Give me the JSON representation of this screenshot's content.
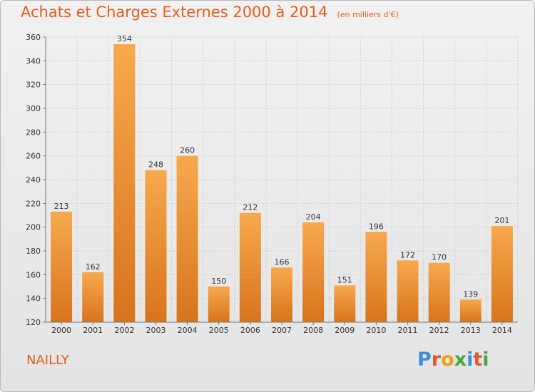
{
  "title": "Achats et Charges Externes 2000 à 2014",
  "unit_note": "(en milliers d'€)",
  "commune": "NAILLY",
  "logo_text": "Proxiti",
  "colors": {
    "title": "#e85a1a",
    "bar_light": "#f7a94e",
    "bar_dark": "#d8741b",
    "grid": "#cfcfcf",
    "axis_text": "#333333",
    "logo": [
      "#3a8ee0",
      "#e05a2a",
      "#e8a21a",
      "#4aa83a",
      "#3a8ee0",
      "#e05a2a",
      "#4aa83a"
    ]
  },
  "chart_data": {
    "type": "bar",
    "categories": [
      "2000",
      "2001",
      "2002",
      "2003",
      "2004",
      "2005",
      "2006",
      "2007",
      "2008",
      "2009",
      "2010",
      "2011",
      "2012",
      "2013",
      "2014"
    ],
    "values": [
      213,
      162,
      354,
      248,
      260,
      150,
      212,
      166,
      204,
      151,
      196,
      172,
      170,
      139,
      201
    ],
    "ylim": [
      120,
      360
    ],
    "yticks": [
      120,
      140,
      160,
      180,
      200,
      220,
      240,
      260,
      280,
      300,
      320,
      340,
      360
    ],
    "grid": true,
    "data_labels": true,
    "xlabel": "",
    "ylabel": ""
  }
}
